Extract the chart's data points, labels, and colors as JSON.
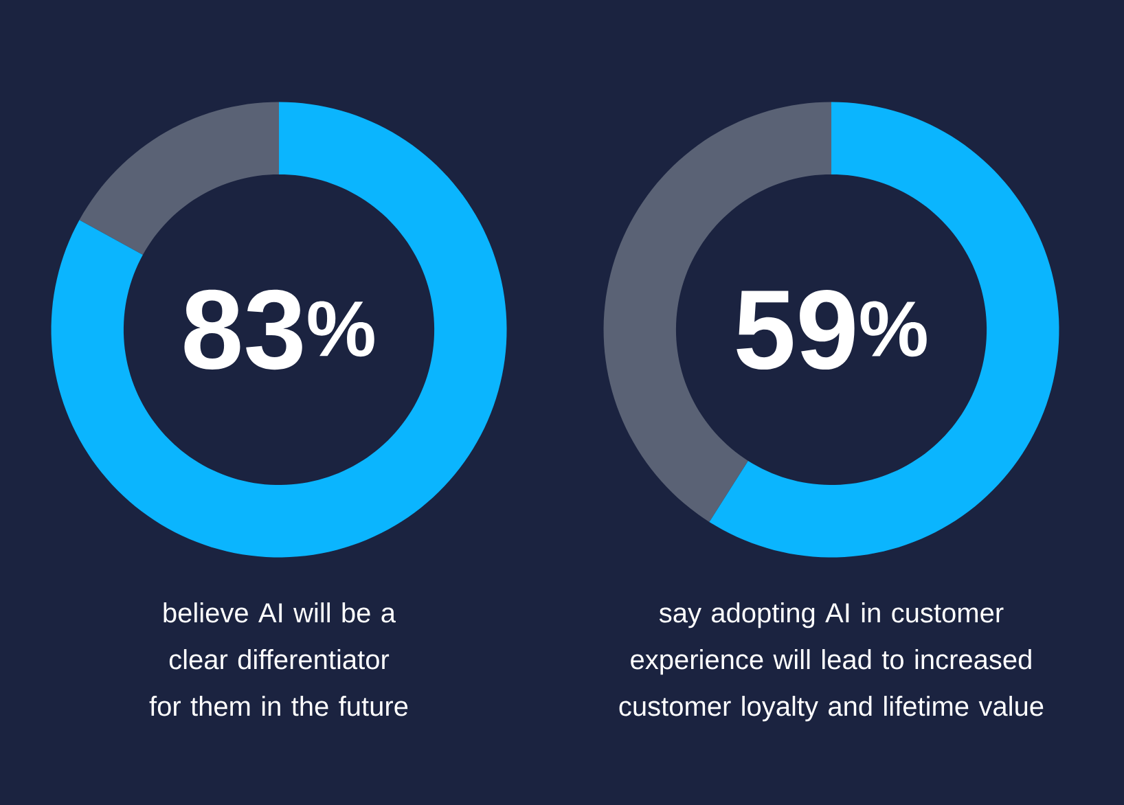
{
  "chart_data": [
    {
      "type": "donut",
      "categories": [
        null,
        null
      ],
      "values": [
        83,
        17
      ],
      "colors": [
        "#0bb5fe",
        "#5a6275"
      ],
      "value_labels": [
        "83$^{%}$",
        null
      ],
      "annotations": [
        "believe AI will be a clear differentiator for them in the future"
      ]
    },
    {
      "type": "donut",
      "categories": [
        null,
        null
      ],
      "values": [
        59,
        41
      ],
      "colors": [
        "#0bb5fe",
        "#5a6275"
      ],
      "value_labels": [
        "59$^{%}$",
        null
      ],
      "annotations": [
        "say adopting AI in customer experience will lead to increased customer loyalty and lifetime value"
      ]
    }
  ]
}
